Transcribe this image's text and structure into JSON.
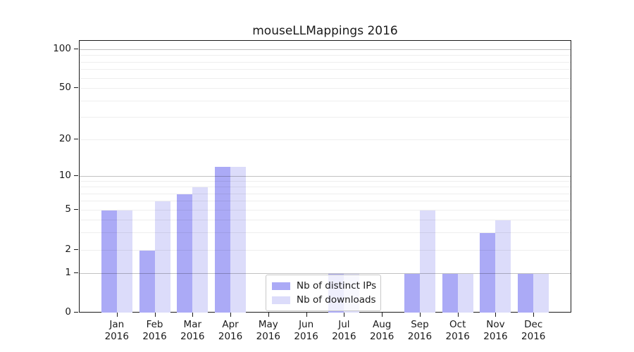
{
  "title": "mouseLLMappings 2016",
  "chart_data": {
    "type": "bar",
    "title": "mouseLLMappings 2016",
    "categories": [
      "Jan 2016",
      "Feb 2016",
      "Mar 2016",
      "Apr 2016",
      "May 2016",
      "Jun 2016",
      "Jul 2016",
      "Aug 2016",
      "Sep 2016",
      "Oct 2016",
      "Nov 2016",
      "Dec 2016"
    ],
    "series": [
      {
        "name": "Nb of distinct IPs",
        "color": "#abaaf6",
        "values": [
          5,
          2,
          7,
          12,
          0,
          0,
          1,
          0,
          1,
          1,
          3,
          1
        ]
      },
      {
        "name": "Nb of downloads",
        "color": "#dcdcfa",
        "values": [
          5,
          6,
          8,
          12,
          0,
          0,
          1,
          0,
          5,
          1,
          4,
          1
        ]
      }
    ],
    "yticks": [
      0,
      1,
      2,
      5,
      10,
      20,
      50,
      100
    ],
    "minor_grid_values": [
      2,
      3,
      4,
      5,
      6,
      7,
      8,
      9,
      20,
      30,
      40,
      50,
      60,
      70,
      80,
      90
    ],
    "major_grid_values": [
      1,
      10,
      100
    ],
    "ylim": [
      0,
      110
    ],
    "yscale": "symlog",
    "grid": "horizontal",
    "legend_position": "inside-bottom-center"
  },
  "axis": {
    "y_tick_labels": [
      "0",
      "1",
      "2",
      "5",
      "10",
      "20",
      "50",
      "100"
    ],
    "x_tick_months": [
      "Jan",
      "Feb",
      "Mar",
      "Apr",
      "May",
      "Jun",
      "Jul",
      "Aug",
      "Sep",
      "Oct",
      "Nov",
      "Dec"
    ],
    "x_tick_year": "2016"
  },
  "legend": {
    "items": [
      {
        "label": "Nb of distinct IPs",
        "color": "#abaaf6"
      },
      {
        "label": "Nb of downloads",
        "color": "#dcdcfa"
      }
    ]
  }
}
